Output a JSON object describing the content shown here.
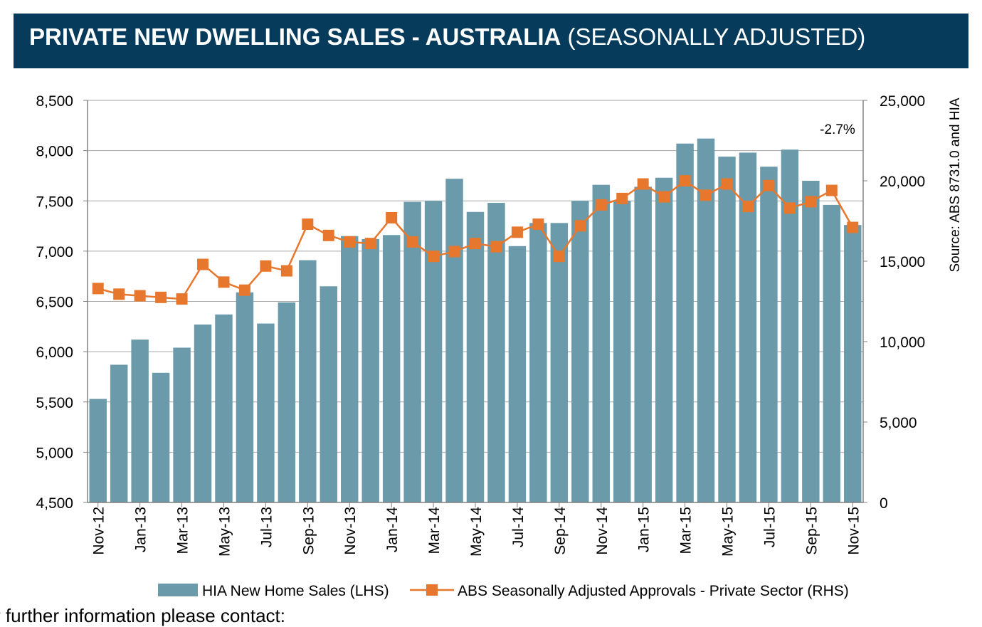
{
  "header": {
    "title_bold": "PRIVATE NEW DWELLING SALES -  AUSTRALIA",
    "title_light": "(SEASONALLY ADJUSTED)"
  },
  "footer": {
    "text": "r further information please contact:"
  },
  "chart_data": {
    "type": "bar+line",
    "categories": [
      "Nov-12",
      "Dec-12",
      "Jan-13",
      "Feb-13",
      "Mar-13",
      "Apr-13",
      "May-13",
      "Jun-13",
      "Jul-13",
      "Aug-13",
      "Sep-13",
      "Oct-13",
      "Nov-13",
      "Dec-13",
      "Jan-14",
      "Feb-14",
      "Mar-14",
      "Apr-14",
      "May-14",
      "Jun-14",
      "Jul-14",
      "Aug-14",
      "Sep-14",
      "Oct-14",
      "Nov-14",
      "Dec-14",
      "Jan-15",
      "Feb-15",
      "Mar-15",
      "Apr-15",
      "May-15",
      "Jun-15",
      "Jul-15",
      "Aug-15",
      "Sep-15",
      "Oct-15",
      "Nov-15"
    ],
    "x_tick_labels": [
      "Nov-12",
      "Jan-13",
      "Mar-13",
      "May-13",
      "Jul-13",
      "Sep-13",
      "Nov-13",
      "Jan-14",
      "Mar-14",
      "May-14",
      "Jul-14",
      "Sep-14",
      "Nov-14",
      "Jan-15",
      "Mar-15",
      "May-15",
      "Jul-15",
      "Sep-15",
      "Nov-15"
    ],
    "series": [
      {
        "name": "HIA New Home Sales (LHS)",
        "type": "bar",
        "axis": "left",
        "color": "#6b9bab",
        "values": [
          5530,
          5870,
          6120,
          5790,
          6040,
          6270,
          6370,
          6590,
          6280,
          6490,
          6910,
          6650,
          7150,
          7120,
          7160,
          7490,
          7500,
          7720,
          7390,
          7480,
          7050,
          7280,
          7280,
          7500,
          7660,
          7500,
          7640,
          7730,
          8070,
          8120,
          7940,
          7980,
          7840,
          8010,
          7700,
          7460,
          7260
        ]
      },
      {
        "name": "ABS Seasonally Adjusted Approvals - Private Sector (RHS)",
        "type": "line",
        "axis": "right",
        "color": "#e8772e",
        "values": [
          13300,
          12950,
          12850,
          12750,
          12650,
          14800,
          13700,
          13200,
          14700,
          14400,
          17300,
          16600,
          16200,
          16100,
          17700,
          16200,
          15300,
          15600,
          16100,
          15900,
          16800,
          17300,
          15300,
          17200,
          18500,
          18900,
          19800,
          19000,
          20000,
          19100,
          19800,
          18400,
          19700,
          18300,
          18700,
          19400,
          17100
        ]
      }
    ],
    "y_left": {
      "min": 4500,
      "max": 8500,
      "step": 500,
      "tick_labels": [
        "4,500",
        "5,000",
        "5,500",
        "6,000",
        "6,500",
        "7,000",
        "7,500",
        "8,000",
        "8,500"
      ]
    },
    "y_right": {
      "min": 0,
      "max": 25000,
      "step": 5000,
      "tick_labels": [
        "0",
        "5,000",
        "10,000",
        "15,000",
        "20,000",
        "25,000"
      ]
    },
    "right_axis_label": "Source: ABS 8731.0 and HIA",
    "annotation": "-2.7%",
    "grid": true,
    "legend_position": "bottom"
  }
}
